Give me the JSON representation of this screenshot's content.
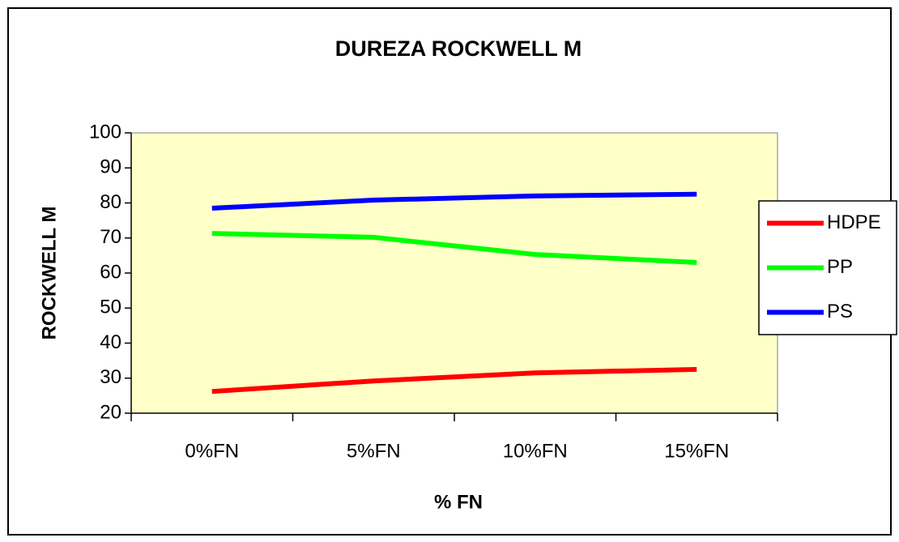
{
  "chart_data": {
    "type": "line",
    "title": "DUREZA ROCKWELL M",
    "x_label": "% FN",
    "y_label": "ROCKWELL M",
    "categories": [
      "0%FN",
      "5%FN",
      "10%FN",
      "15%FN"
    ],
    "series": [
      {
        "name": "HDPE",
        "color": "#ff0000",
        "values": [
          26.2,
          29.2,
          31.5,
          32.5
        ]
      },
      {
        "name": "PP",
        "color": "#00ff00",
        "values": [
          71.3,
          70.2,
          65.3,
          63
        ]
      },
      {
        "name": "PS",
        "color": "#0000ff",
        "values": [
          78.5,
          80.8,
          82,
          82.5
        ]
      }
    ],
    "ylim": [
      20,
      100
    ],
    "yticks": [
      20,
      30,
      40,
      50,
      60,
      70,
      80,
      90,
      100
    ],
    "grid": false,
    "legend": "right"
  }
}
